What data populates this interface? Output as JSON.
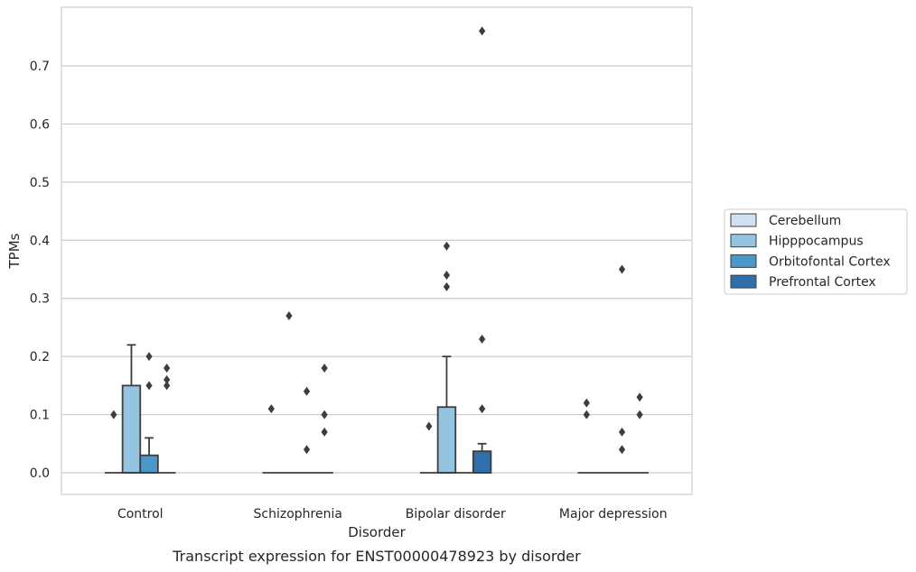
{
  "chart_data": {
    "type": "box",
    "caption": "Transcript expression for ENST00000478923 by disorder",
    "xlabel": "Disorder",
    "ylabel": "TPMs",
    "ylim": [
      -0.037,
      0.8
    ],
    "yticks": [
      0.0,
      0.1,
      0.2,
      0.3,
      0.4,
      0.5,
      0.6,
      0.7
    ],
    "ytick_labels": [
      "0.0",
      "0.1",
      "0.2",
      "0.3",
      "0.4",
      "0.5",
      "0.6",
      "0.7"
    ],
    "grid": "horizontal",
    "legend_position": "right",
    "categories": [
      "Control",
      "Schizophrenia",
      "Bipolar disorder",
      "Major depression"
    ],
    "series": [
      {
        "name": "Cerebellum",
        "color": "#d0e1f2",
        "boxes": [
          {
            "q1": 0,
            "median": 0,
            "q3": 0,
            "whisker_low": 0,
            "whisker_high": 0,
            "outliers": [
              0.1
            ]
          },
          {
            "q1": 0,
            "median": 0,
            "q3": 0,
            "whisker_low": 0,
            "whisker_high": 0,
            "outliers": [
              0.11
            ]
          },
          {
            "q1": 0,
            "median": 0,
            "q3": 0,
            "whisker_low": 0,
            "whisker_high": 0,
            "outliers": [
              0.08
            ]
          },
          {
            "q1": 0,
            "median": 0,
            "q3": 0,
            "whisker_low": 0,
            "whisker_high": 0,
            "outliers": [
              0.1,
              0.12
            ]
          }
        ]
      },
      {
        "name": "Hipppocampus",
        "color": "#94c4df",
        "boxes": [
          {
            "q1": 0,
            "median": 0,
            "q3": 0.15,
            "whisker_low": 0,
            "whisker_high": 0.22,
            "outliers": []
          },
          {
            "q1": 0,
            "median": 0,
            "q3": 0,
            "whisker_low": 0,
            "whisker_high": 0,
            "outliers": [
              0.27
            ]
          },
          {
            "q1": 0,
            "median": 0,
            "q3": 0.113,
            "whisker_low": 0,
            "whisker_high": 0.2,
            "outliers": [
              0.32,
              0.34,
              0.39
            ]
          },
          {
            "q1": 0,
            "median": 0,
            "q3": 0,
            "whisker_low": 0,
            "whisker_high": 0,
            "outliers": []
          }
        ]
      },
      {
        "name": "Orbitofontal Cortex",
        "color": "#4a98c9",
        "boxes": [
          {
            "q1": 0,
            "median": 0,
            "q3": 0.03,
            "whisker_low": 0,
            "whisker_high": 0.06,
            "outliers": [
              0.15,
              0.2
            ]
          },
          {
            "q1": 0,
            "median": 0,
            "q3": 0,
            "whisker_low": 0,
            "whisker_high": 0,
            "outliers": [
              0.04,
              0.14
            ]
          },
          {
            "q1": 0,
            "median": 0,
            "q3": 0,
            "whisker_low": 0,
            "whisker_high": 0,
            "outliers": []
          },
          {
            "q1": 0,
            "median": 0,
            "q3": 0,
            "whisker_low": 0,
            "whisker_high": 0,
            "outliers": [
              0.04,
              0.07,
              0.35
            ]
          }
        ]
      },
      {
        "name": "Prefrontal Cortex",
        "color": "#2e6fac",
        "boxes": [
          {
            "q1": 0,
            "median": 0,
            "q3": 0,
            "whisker_low": 0,
            "whisker_high": 0,
            "outliers": [
              0.15,
              0.16,
              0.18
            ]
          },
          {
            "q1": 0,
            "median": 0,
            "q3": 0,
            "whisker_low": 0,
            "whisker_high": 0,
            "outliers": [
              0.07,
              0.1,
              0.18
            ]
          },
          {
            "q1": 0,
            "median": 0,
            "q3": 0.037,
            "whisker_low": 0,
            "whisker_high": 0.05,
            "outliers": [
              0.11,
              0.23,
              0.76
            ]
          },
          {
            "q1": 0,
            "median": 0,
            "q3": 0,
            "whisker_low": 0,
            "whisker_high": 0,
            "outliers": [
              0.1,
              0.13
            ]
          }
        ]
      }
    ],
    "style": {
      "grid_color": "#cccccc",
      "frame_color": "#cccccc",
      "line_color": "#3d3d3d",
      "outlier_color": "#3d3d3d",
      "background": "#ffffff"
    }
  }
}
